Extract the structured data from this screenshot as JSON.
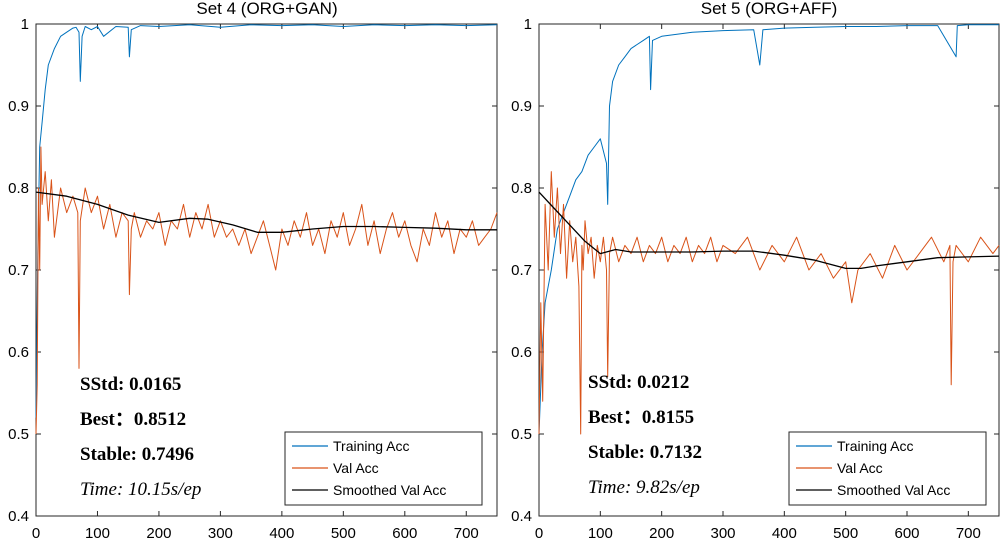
{
  "chart_data": [
    {
      "type": "line",
      "title": "Set 4 (ORG+GAN)",
      "xlim": [
        0,
        750
      ],
      "ylim": [
        0.4,
        1.0
      ],
      "xticks": [
        0,
        100,
        200,
        300,
        400,
        500,
        600,
        700
      ],
      "yticks": [
        0.4,
        0.5,
        0.6,
        0.7,
        0.8,
        0.9,
        1.0
      ],
      "ytick_labels": [
        "0.4",
        "0.5",
        "0.6",
        "0.7",
        "0.8",
        "0.9",
        "1"
      ],
      "grid": false,
      "legend_position": "bottom-right",
      "stats": {
        "sstd": "SStd: 0.0165",
        "best": "Best：0.8512",
        "stable": "Stable: 0.7496",
        "time": "Time: 10.15s/ep"
      },
      "series": [
        {
          "name": "Training Acc",
          "color": "#0072BD",
          "x": [
            0,
            3,
            6,
            10,
            15,
            20,
            30,
            40,
            50,
            60,
            65,
            70,
            72,
            75,
            80,
            90,
            100,
            110,
            130,
            150,
            152,
            155,
            170,
            200,
            250,
            300,
            350,
            400,
            450,
            500,
            550,
            600,
            650,
            700,
            750
          ],
          "values": [
            0.52,
            0.72,
            0.85,
            0.88,
            0.92,
            0.95,
            0.97,
            0.985,
            0.99,
            0.995,
            0.996,
            0.99,
            0.93,
            0.985,
            0.997,
            0.993,
            0.997,
            0.985,
            0.997,
            0.996,
            0.96,
            0.993,
            0.998,
            0.997,
            0.999,
            0.996,
            0.999,
            0.998,
            0.999,
            0.997,
            0.999,
            0.998,
            0.999,
            0.998,
            0.999
          ]
        },
        {
          "name": "Val Acc",
          "color": "#D95319",
          "x": [
            0,
            2,
            4,
            6,
            8,
            10,
            15,
            20,
            25,
            30,
            40,
            50,
            60,
            68,
            70,
            72,
            80,
            90,
            100,
            110,
            120,
            130,
            140,
            150,
            152,
            155,
            160,
            170,
            180,
            190,
            200,
            210,
            220,
            230,
            240,
            250,
            260,
            270,
            280,
            290,
            300,
            310,
            320,
            330,
            340,
            350,
            360,
            370,
            380,
            390,
            400,
            410,
            420,
            430,
            440,
            450,
            460,
            470,
            480,
            490,
            500,
            510,
            520,
            530,
            540,
            550,
            560,
            570,
            580,
            590,
            600,
            610,
            620,
            630,
            640,
            650,
            660,
            670,
            680,
            690,
            700,
            710,
            720,
            730,
            740,
            750
          ],
          "values": [
            0.5,
            0.56,
            0.8,
            0.7,
            0.85,
            0.78,
            0.82,
            0.76,
            0.81,
            0.74,
            0.8,
            0.77,
            0.79,
            0.77,
            0.58,
            0.76,
            0.8,
            0.77,
            0.79,
            0.75,
            0.78,
            0.74,
            0.77,
            0.76,
            0.67,
            0.75,
            0.77,
            0.74,
            0.76,
            0.75,
            0.77,
            0.73,
            0.76,
            0.75,
            0.78,
            0.74,
            0.77,
            0.75,
            0.78,
            0.74,
            0.76,
            0.74,
            0.75,
            0.73,
            0.75,
            0.72,
            0.74,
            0.76,
            0.73,
            0.7,
            0.75,
            0.73,
            0.76,
            0.74,
            0.77,
            0.73,
            0.75,
            0.72,
            0.76,
            0.74,
            0.77,
            0.73,
            0.75,
            0.78,
            0.73,
            0.76,
            0.72,
            0.75,
            0.77,
            0.74,
            0.76,
            0.73,
            0.71,
            0.75,
            0.73,
            0.77,
            0.74,
            0.76,
            0.72,
            0.75,
            0.74,
            0.76,
            0.73,
            0.74,
            0.75,
            0.77
          ]
        },
        {
          "name": "Smoothed Val Acc",
          "color": "#000000",
          "x": [
            0,
            50,
            100,
            150,
            200,
            250,
            280,
            320,
            360,
            400,
            450,
            500,
            550,
            600,
            650,
            700,
            750
          ],
          "values": [
            0.795,
            0.79,
            0.78,
            0.767,
            0.758,
            0.763,
            0.762,
            0.755,
            0.746,
            0.746,
            0.75,
            0.753,
            0.753,
            0.752,
            0.751,
            0.749,
            0.749
          ]
        }
      ]
    },
    {
      "type": "line",
      "title": "Set 5 (ORG+AFF)",
      "xlim": [
        0,
        750
      ],
      "ylim": [
        0.4,
        1.0
      ],
      "xticks": [
        0,
        100,
        200,
        300,
        400,
        500,
        600,
        700
      ],
      "yticks": [
        0.4,
        0.5,
        0.6,
        0.7,
        0.8,
        0.9,
        1.0
      ],
      "ytick_labels": [
        "0.4",
        "0.5",
        "0.6",
        "0.7",
        "0.8",
        "0.9",
        "1"
      ],
      "grid": false,
      "legend_position": "bottom-right",
      "stats": {
        "sstd": "SStd: 0.0212",
        "best": "Best：0.8155",
        "stable": "Stable: 0.7132",
        "time": "Time: 9.82s/ep"
      },
      "series": [
        {
          "name": "Training Acc",
          "color": "#0072BD",
          "x": [
            0,
            5,
            10,
            20,
            30,
            40,
            50,
            60,
            70,
            80,
            90,
            100,
            110,
            112,
            115,
            120,
            130,
            140,
            150,
            160,
            170,
            180,
            182,
            185,
            200,
            250,
            300,
            350,
            360,
            365,
            400,
            450,
            500,
            550,
            600,
            650,
            680,
            682,
            700,
            750
          ],
          "values": [
            0.5,
            0.6,
            0.66,
            0.7,
            0.75,
            0.77,
            0.79,
            0.81,
            0.82,
            0.84,
            0.85,
            0.86,
            0.83,
            0.78,
            0.9,
            0.93,
            0.95,
            0.96,
            0.97,
            0.975,
            0.98,
            0.985,
            0.92,
            0.98,
            0.985,
            0.99,
            0.992,
            0.993,
            0.95,
            0.993,
            0.995,
            0.996,
            0.997,
            0.997,
            0.998,
            0.998,
            0.96,
            0.998,
            0.999,
            0.999
          ]
        },
        {
          "name": "Val Acc",
          "color": "#D95319",
          "x": [
            0,
            3,
            6,
            10,
            15,
            20,
            25,
            30,
            35,
            40,
            45,
            50,
            55,
            60,
            65,
            68,
            70,
            72,
            75,
            80,
            85,
            90,
            95,
            100,
            105,
            110,
            112,
            115,
            120,
            130,
            140,
            150,
            160,
            170,
            180,
            190,
            200,
            210,
            220,
            230,
            240,
            250,
            260,
            270,
            280,
            290,
            300,
            320,
            340,
            360,
            380,
            400,
            420,
            440,
            460,
            480,
            500,
            510,
            520,
            540,
            560,
            580,
            600,
            620,
            640,
            660,
            670,
            672,
            675,
            680,
            700,
            720,
            740,
            750
          ],
          "values": [
            0.5,
            0.66,
            0.54,
            0.78,
            0.7,
            0.82,
            0.74,
            0.8,
            0.72,
            0.78,
            0.69,
            0.76,
            0.71,
            0.74,
            0.68,
            0.5,
            0.73,
            0.7,
            0.76,
            0.72,
            0.74,
            0.69,
            0.73,
            0.71,
            0.74,
            0.7,
            0.57,
            0.72,
            0.74,
            0.71,
            0.73,
            0.72,
            0.74,
            0.71,
            0.73,
            0.72,
            0.74,
            0.71,
            0.73,
            0.72,
            0.74,
            0.71,
            0.73,
            0.72,
            0.74,
            0.71,
            0.73,
            0.72,
            0.74,
            0.7,
            0.73,
            0.71,
            0.74,
            0.7,
            0.72,
            0.69,
            0.71,
            0.66,
            0.7,
            0.72,
            0.69,
            0.73,
            0.7,
            0.72,
            0.74,
            0.71,
            0.73,
            0.56,
            0.71,
            0.73,
            0.71,
            0.74,
            0.72,
            0.73
          ]
        },
        {
          "name": "Smoothed Val Acc",
          "color": "#000000",
          "x": [
            0,
            25,
            50,
            75,
            100,
            125,
            150,
            200,
            250,
            300,
            350,
            400,
            450,
            500,
            525,
            550,
            600,
            650,
            700,
            750
          ],
          "values": [
            0.795,
            0.775,
            0.755,
            0.735,
            0.72,
            0.725,
            0.722,
            0.722,
            0.722,
            0.723,
            0.723,
            0.718,
            0.712,
            0.702,
            0.702,
            0.705,
            0.71,
            0.715,
            0.716,
            0.717
          ]
        }
      ]
    }
  ]
}
